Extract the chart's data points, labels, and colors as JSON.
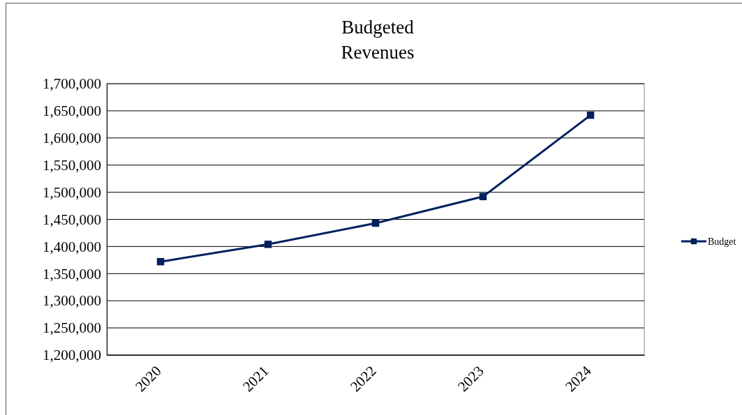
{
  "chart_data": {
    "type": "line",
    "title": "Budgeted Revenues",
    "categories": [
      "2020",
      "2021",
      "2022",
      "2023",
      "2024"
    ],
    "series": [
      {
        "name": "Budget",
        "color": "#002060",
        "values": [
          1372000,
          1404000,
          1443000,
          1492000,
          1642000
        ]
      }
    ],
    "ylim": [
      1200000,
      1700000
    ],
    "yticks": [
      {
        "value": 1200000,
        "label": "1,200,000"
      },
      {
        "value": 1250000,
        "label": "1,250,000"
      },
      {
        "value": 1300000,
        "label": "1,300,000"
      },
      {
        "value": 1350000,
        "label": "1,350,000"
      },
      {
        "value": 1400000,
        "label": "1,400,000"
      },
      {
        "value": 1450000,
        "label": "1,450,000"
      },
      {
        "value": 1500000,
        "label": "1,500,000"
      },
      {
        "value": 1550000,
        "label": "1,550,000"
      },
      {
        "value": 1600000,
        "label": "1,600,000"
      },
      {
        "value": 1650000,
        "label": "1,650,000"
      },
      {
        "value": 1700000,
        "label": "1,700,000"
      }
    ],
    "grid": "y",
    "legend": "right",
    "marker": "square",
    "line_style": "solid"
  }
}
